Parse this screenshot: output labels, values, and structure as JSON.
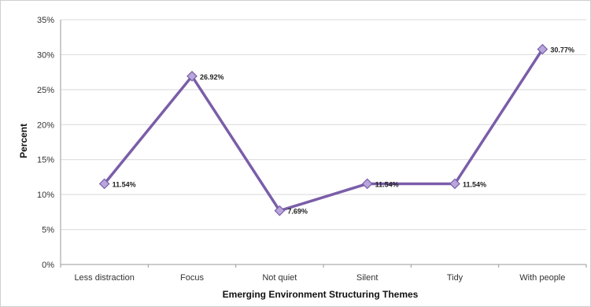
{
  "chart_data": {
    "type": "line",
    "title": "",
    "xlabel": "Emerging Environment Structuring Themes",
    "ylabel": "Percent",
    "categories": [
      "Less distraction",
      "Focus",
      "Not quiet",
      "Silent",
      "Tidy",
      "With people"
    ],
    "series": [
      {
        "values": [
          11.54,
          26.92,
          7.69,
          11.54,
          11.54,
          30.77
        ],
        "data_labels": [
          "11.54%",
          "26.92%",
          "7.69%",
          "11.54%",
          "11.54%",
          "30.77%"
        ]
      }
    ],
    "ylim": [
      0,
      35
    ],
    "yticks": [
      0,
      5,
      10,
      15,
      20,
      25,
      30,
      35
    ],
    "ytick_labels": [
      "0%",
      "5%",
      "10%",
      "15%",
      "20%",
      "25%",
      "30%",
      "35%"
    ],
    "grid": true,
    "legend": "none",
    "line_color": "#7a5ea8",
    "marker_color": "#b9a6dc",
    "grid_color": "#d9d9d9"
  }
}
